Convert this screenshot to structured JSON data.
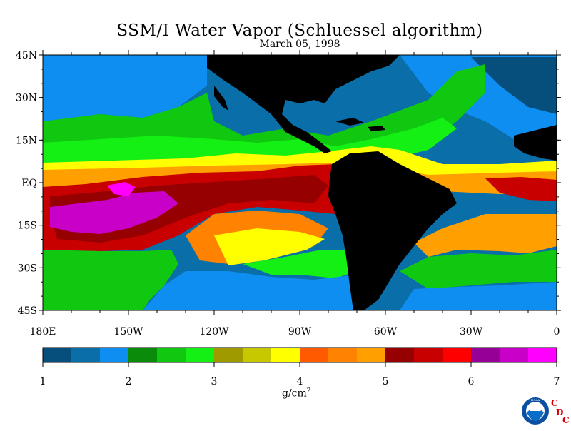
{
  "title": "SSM/I Water Vapor (Schluessel algorithm)",
  "subtitle": "March 05, 1998",
  "lat_labels": [
    "45N",
    "30N",
    "15N",
    "EQ",
    "15S",
    "30S",
    "45S"
  ],
  "lon_labels": [
    "180E",
    "150W",
    "120W",
    "90W",
    "60W",
    "30W",
    "0"
  ],
  "colorbar": {
    "colors": [
      "#064f7d",
      "#0a6ea8",
      "#0e8ef0",
      "#0a8c0a",
      "#10c810",
      "#14f014",
      "#9e9a00",
      "#c8c800",
      "#ffff00",
      "#ff5a00",
      "#ff8200",
      "#ffa000",
      "#960000",
      "#c80000",
      "#ff0000",
      "#960096",
      "#c800c8",
      "#ff00ff"
    ],
    "tick_labels": [
      "1",
      "2",
      "3",
      "4",
      "5",
      "6",
      "7"
    ],
    "min": 1,
    "max": 7
  },
  "units_label": "g/cm",
  "units_superscript": "2",
  "logos": {
    "noaa_text": "NOAA",
    "cdc_letters": [
      "C",
      "D",
      "C"
    ]
  }
}
